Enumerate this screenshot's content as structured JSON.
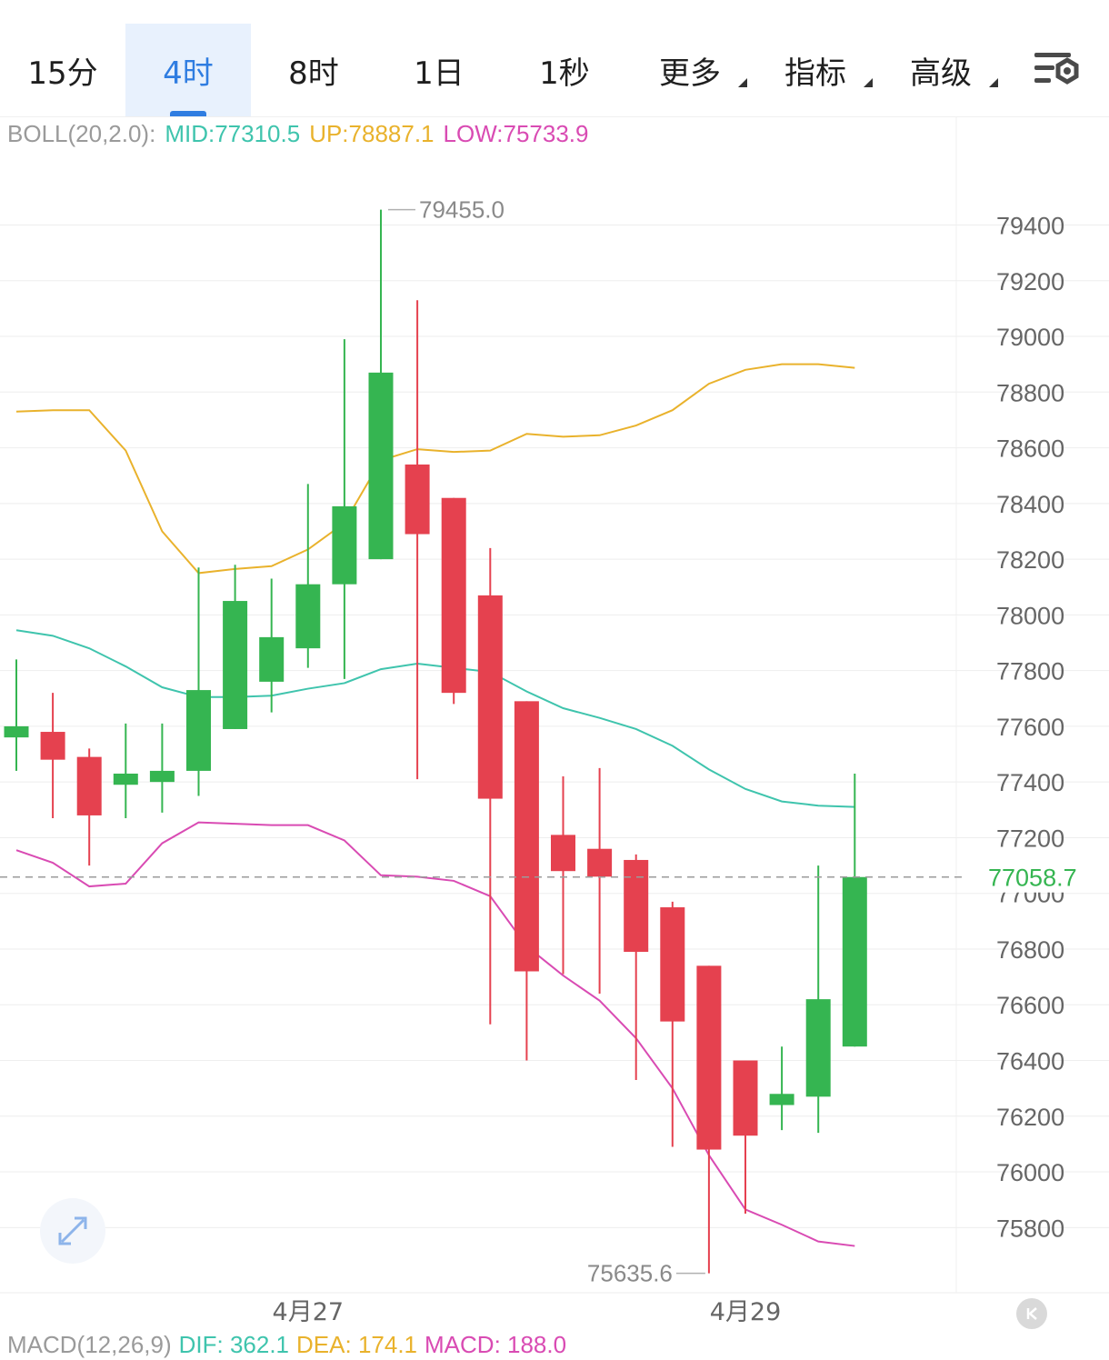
{
  "tabs": [
    {
      "label": "15分",
      "active": false,
      "dropdown": false
    },
    {
      "label": "4时",
      "active": true,
      "dropdown": false
    },
    {
      "label": "8时",
      "active": false,
      "dropdown": false
    },
    {
      "label": "1日",
      "active": false,
      "dropdown": false
    },
    {
      "label": "1秒",
      "active": false,
      "dropdown": false
    },
    {
      "label": "更多",
      "active": false,
      "dropdown": true
    },
    {
      "label": "指标",
      "active": false,
      "dropdown": true
    },
    {
      "label": "高级",
      "active": false,
      "dropdown": true
    }
  ],
  "settings_icon": "chart-settings-icon",
  "boll": {
    "name": "BOLL(20,2.0):",
    "mid": "MID:77310.5",
    "up": "UP:78887.1",
    "low": "LOW:75733.9"
  },
  "macd": {
    "name": "MACD(12,26,9)",
    "dif": "DIF: 362.1",
    "dea": "DEA: 174.1",
    "macd": "MACD: 188.0"
  },
  "colors": {
    "up": "#35b551",
    "down": "#e5414f",
    "boll_mid": "#3fc4ad",
    "boll_up": "#e9b22c",
    "boll_low": "#d94bb3",
    "active_tab": "#2f7de1",
    "grid": "#eeeeee",
    "axis_text": "#666666"
  },
  "chart_data": {
    "type": "candlestick",
    "y_axis": {
      "range": [
        75566,
        79653
      ],
      "ticks": [
        79400,
        79200,
        79000,
        78800,
        78600,
        78400,
        78200,
        78000,
        77800,
        77600,
        77400,
        77200,
        77000,
        76800,
        76600,
        76400,
        76200,
        76000,
        75800
      ],
      "tick_labels": [
        "79400",
        "79200",
        "79000",
        "78800",
        "78600",
        "78400",
        "78200",
        "78000",
        "77800",
        "77600",
        "77400",
        "77200",
        "77000",
        "76800",
        "76600",
        "76400",
        "76200",
        "76000",
        "75800"
      ]
    },
    "x_labels": [
      {
        "label": "4月27",
        "index": 8
      },
      {
        "label": "4月29",
        "index": 20
      }
    ],
    "current_price": 77058.7,
    "current_price_label": "77058.7",
    "max_marker": {
      "value": 79455.0,
      "label": "79455.0",
      "index": 10
    },
    "min_marker": {
      "value": 75635.6,
      "label": "75635.6",
      "index": 19
    },
    "candles": [
      {
        "o": 77560,
        "h": 77840,
        "l": 77440,
        "c": 77600
      },
      {
        "o": 77580,
        "h": 77720,
        "l": 77270,
        "c": 77480
      },
      {
        "o": 77490,
        "h": 77520,
        "l": 77100,
        "c": 77280
      },
      {
        "o": 77390,
        "h": 77610,
        "l": 77270,
        "c": 77430
      },
      {
        "o": 77400,
        "h": 77610,
        "l": 77290,
        "c": 77440
      },
      {
        "o": 77440,
        "h": 78170,
        "l": 77350,
        "c": 77730
      },
      {
        "o": 77590,
        "h": 78180,
        "l": 77590,
        "c": 78050
      },
      {
        "o": 77760,
        "h": 78130,
        "l": 77650,
        "c": 77920
      },
      {
        "o": 77880,
        "h": 78470,
        "l": 77810,
        "c": 78110
      },
      {
        "o": 78110,
        "h": 78990,
        "l": 77770,
        "c": 78390
      },
      {
        "o": 78200,
        "h": 79455,
        "l": 78200,
        "c": 78870
      },
      {
        "o": 78540,
        "h": 79130,
        "l": 77410,
        "c": 78290
      },
      {
        "o": 78420,
        "h": 78420,
        "l": 77680,
        "c": 77720
      },
      {
        "o": 78070,
        "h": 78240,
        "l": 76530,
        "c": 77340
      },
      {
        "o": 77690,
        "h": 77690,
        "l": 76400,
        "c": 76720
      },
      {
        "o": 77210,
        "h": 77420,
        "l": 76710,
        "c": 77080
      },
      {
        "o": 77160,
        "h": 77450,
        "l": 76640,
        "c": 77060
      },
      {
        "o": 77120,
        "h": 77140,
        "l": 76330,
        "c": 76790
      },
      {
        "o": 76950,
        "h": 76970,
        "l": 76090,
        "c": 76540
      },
      {
        "o": 76740,
        "h": 76740,
        "l": 75635.6,
        "c": 76080
      },
      {
        "o": 76400,
        "h": 76400,
        "l": 75850,
        "c": 76130
      },
      {
        "o": 76240,
        "h": 76450,
        "l": 76150,
        "c": 76280
      },
      {
        "o": 76270,
        "h": 77100,
        "l": 76140,
        "c": 76620
      },
      {
        "o": 76450,
        "h": 77430,
        "l": 76450,
        "c": 77058.7
      }
    ],
    "series": [
      {
        "name": "UP",
        "values": [
          78730,
          78735,
          78735,
          78590,
          78300,
          78150,
          78165,
          78175,
          78235,
          78330,
          78555,
          78595,
          78585,
          78590,
          78650,
          78640,
          78645,
          78680,
          78735,
          78830,
          78880,
          78900,
          78900,
          78887.1
        ]
      },
      {
        "name": "MID",
        "values": [
          77945,
          77925,
          77880,
          77815,
          77740,
          77705,
          77705,
          77710,
          77735,
          77755,
          77805,
          77825,
          77810,
          77795,
          77725,
          77665,
          77630,
          77590,
          77530,
          77445,
          77375,
          77330,
          77315,
          77310.5
        ]
      },
      {
        "name": "LOW",
        "values": [
          77155,
          77110,
          77025,
          77035,
          77180,
          77255,
          77250,
          77245,
          77245,
          77190,
          77065,
          77060,
          77045,
          76990,
          76810,
          76705,
          76615,
          76480,
          76300,
          76060,
          75865,
          75810,
          75750,
          75733.9
        ]
      }
    ]
  }
}
